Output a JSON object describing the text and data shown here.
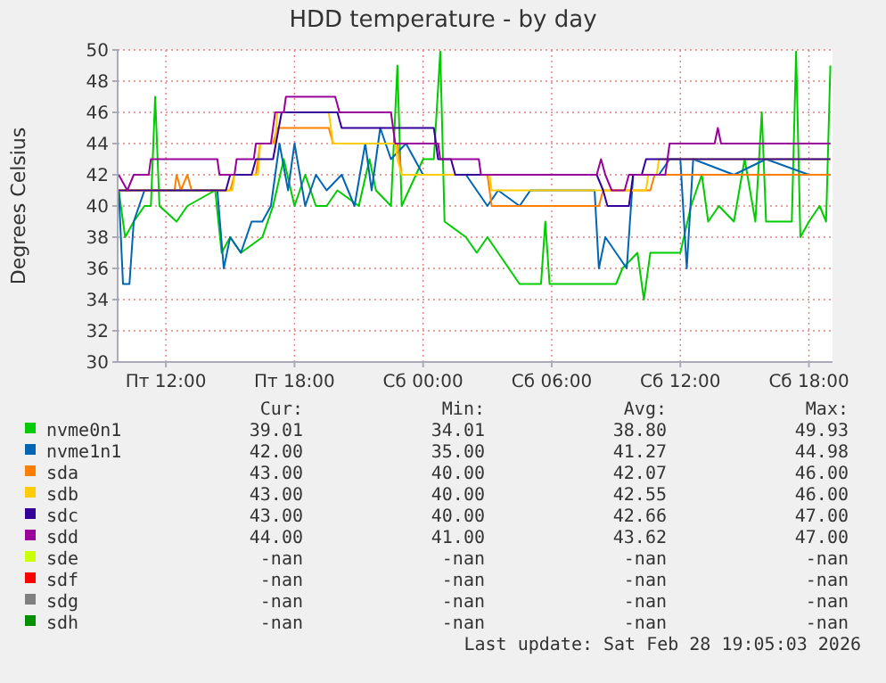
{
  "chart_data": {
    "type": "line",
    "title": "HDD temperature - by day",
    "ylabel": "Degrees Celsius",
    "xlim": [
      "2026-02-27T09:45",
      "2026-02-28T19:06"
    ],
    "xticks": [
      {
        "value": "2026-02-27T12:00",
        "label": "Пт 12:00"
      },
      {
        "value": "2026-02-27T18:00",
        "label": "Пт 18:00"
      },
      {
        "value": "2026-02-28T00:00",
        "label": "Сб 00:00"
      },
      {
        "value": "2026-02-28T06:00",
        "label": "Сб 06:00"
      },
      {
        "value": "2026-02-28T12:00",
        "label": "Сб 12:00"
      },
      {
        "value": "2026-02-28T18:00",
        "label": "Сб 18:00"
      }
    ],
    "ylim": [
      30,
      50
    ],
    "yticks": [
      30,
      32,
      34,
      36,
      38,
      40,
      42,
      44,
      46,
      48,
      50
    ],
    "grid": true,
    "legend": "bottom",
    "marker": "none",
    "line_style": "solid",
    "series": [
      {
        "name": "nvme0n1",
        "color": "#00cc00",
        "x": [
          "2026-02-27T09:48",
          "2026-02-27T10:06",
          "2026-02-27T10:30",
          "2026-02-27T11:00",
          "2026-02-27T11:18",
          "2026-02-27T11:30",
          "2026-02-27T11:42",
          "2026-02-27T12:30",
          "2026-02-27T13:00",
          "2026-02-27T14:18",
          "2026-02-27T14:36",
          "2026-02-27T15:00",
          "2026-02-27T15:30",
          "2026-02-27T16:30",
          "2026-02-27T17:00",
          "2026-02-27T17:30",
          "2026-02-27T18:00",
          "2026-02-27T18:30",
          "2026-02-27T19:00",
          "2026-02-27T19:30",
          "2026-02-27T20:00",
          "2026-02-27T21:00",
          "2026-02-27T21:30",
          "2026-02-27T21:48",
          "2026-02-27T22:30",
          "2026-02-27T22:48",
          "2026-02-27T23:00",
          "2026-02-28T00:00",
          "2026-02-28T00:30",
          "2026-02-28T00:48",
          "2026-02-28T01:00",
          "2026-02-28T02:00",
          "2026-02-28T02:30",
          "2026-02-28T03:00",
          "2026-02-28T04:00",
          "2026-02-28T04:30",
          "2026-02-28T05:30",
          "2026-02-28T05:42",
          "2026-02-28T05:54",
          "2026-02-28T09:00",
          "2026-02-28T09:18",
          "2026-02-28T10:00",
          "2026-02-28T10:18",
          "2026-02-28T10:36",
          "2026-02-28T12:00",
          "2026-02-28T12:30",
          "2026-02-28T13:00",
          "2026-02-28T13:18",
          "2026-02-28T13:48",
          "2026-02-28T14:30",
          "2026-02-28T15:00",
          "2026-02-28T15:30",
          "2026-02-28T15:48",
          "2026-02-28T16:00",
          "2026-02-28T17:12",
          "2026-02-28T17:24",
          "2026-02-28T17:36",
          "2026-02-28T18:00",
          "2026-02-28T18:30",
          "2026-02-28T18:48",
          "2026-02-28T19:00"
        ],
        "values": [
          41,
          38,
          39,
          40,
          40,
          47,
          40,
          39,
          40,
          41,
          37,
          38,
          37,
          38,
          40,
          43,
          40,
          42,
          40,
          40,
          41,
          40,
          43,
          41,
          40,
          49,
          40,
          43,
          43,
          49.9,
          39,
          38,
          37,
          38,
          36,
          35,
          35,
          39,
          35,
          35,
          36,
          37,
          34,
          37,
          37,
          40,
          42,
          39,
          40,
          39,
          43,
          39,
          46,
          39,
          39,
          49.9,
          38,
          39,
          40,
          39,
          49
        ]
      },
      {
        "name": "nvme1n1",
        "color": "#0066b3",
        "x": [
          "2026-02-27T09:48",
          "2026-02-27T10:00",
          "2026-02-27T10:18",
          "2026-02-27T10:30",
          "2026-02-27T11:00",
          "2026-02-27T14:24",
          "2026-02-27T14:42",
          "2026-02-27T15:00",
          "2026-02-27T15:30",
          "2026-02-27T16:00",
          "2026-02-27T16:30",
          "2026-02-27T16:54",
          "2026-02-27T17:18",
          "2026-02-27T17:42",
          "2026-02-27T18:00",
          "2026-02-27T18:30",
          "2026-02-27T19:00",
          "2026-02-27T19:30",
          "2026-02-27T20:12",
          "2026-02-27T20:48",
          "2026-02-27T21:18",
          "2026-02-27T21:36",
          "2026-02-27T22:00",
          "2026-02-27T22:30",
          "2026-02-27T23:12",
          "2026-02-28T00:00",
          "2026-02-28T02:00",
          "2026-02-28T03:00",
          "2026-02-28T03:30",
          "2026-02-28T04:30",
          "2026-02-28T05:00",
          "2026-02-28T08:00",
          "2026-02-28T08:12",
          "2026-02-28T08:30",
          "2026-02-28T09:00",
          "2026-02-28T09:30",
          "2026-02-28T09:48",
          "2026-02-28T11:00",
          "2026-02-28T11:30",
          "2026-02-28T12:00",
          "2026-02-28T12:18",
          "2026-02-28T12:36",
          "2026-02-28T14:30",
          "2026-02-28T16:00",
          "2026-02-28T18:00",
          "2026-02-28T19:00"
        ],
        "values": [
          41,
          35,
          35,
          39,
          41,
          41,
          36,
          38,
          37,
          39,
          39,
          40,
          44,
          41,
          44,
          40,
          42,
          41,
          42,
          40,
          44,
          41,
          45,
          43,
          44,
          42,
          42,
          40,
          41,
          40,
          41,
          41,
          36,
          38,
          37,
          36,
          42,
          42,
          43,
          43,
          36,
          43,
          42,
          43,
          42,
          42
        ]
      },
      {
        "name": "sda",
        "color": "#ff8000",
        "x": [
          "2026-02-27T09:48",
          "2026-02-27T12:24",
          "2026-02-27T12:30",
          "2026-02-27T12:42",
          "2026-02-27T13:00",
          "2026-02-27T13:12",
          "2026-02-27T15:00",
          "2026-02-27T15:12",
          "2026-02-27T16:12",
          "2026-02-27T16:24",
          "2026-02-27T17:00",
          "2026-02-27T17:12",
          "2026-02-27T19:36",
          "2026-02-27T19:48",
          "2026-02-27T22:48",
          "2026-02-27T23:00",
          "2026-02-28T03:00",
          "2026-02-28T03:12",
          "2026-02-28T08:12",
          "2026-02-28T08:24",
          "2026-02-28T10:36",
          "2026-02-28T10:48",
          "2026-02-28T19:00"
        ],
        "values": [
          41,
          41,
          42,
          41,
          42,
          41,
          41,
          42,
          42,
          44,
          44,
          45,
          45,
          44,
          44,
          42,
          42,
          40,
          40,
          41,
          41,
          42,
          42
        ]
      },
      {
        "name": "sdb",
        "color": "#ffcc00",
        "x": [
          "2026-02-27T09:48",
          "2026-02-27T15:06",
          "2026-02-27T15:12",
          "2026-02-27T16:18",
          "2026-02-27T16:24",
          "2026-02-27T17:06",
          "2026-02-27T17:12",
          "2026-02-27T19:36",
          "2026-02-27T19:48",
          "2026-02-27T22:42",
          "2026-02-27T22:48",
          "2026-02-27T23:00",
          "2026-02-28T03:06",
          "2026-02-28T03:12",
          "2026-02-28T08:18",
          "2026-02-28T10:24",
          "2026-02-28T10:30",
          "2026-02-28T10:54",
          "2026-02-28T11:00",
          "2026-02-28T19:00"
        ],
        "values": [
          41,
          41,
          42,
          42,
          44,
          44,
          46,
          46,
          44,
          44,
          43,
          42,
          42,
          41,
          41,
          41,
          42,
          42,
          43,
          43
        ]
      },
      {
        "name": "sdc",
        "color": "#330099",
        "x": [
          "2026-02-27T09:48",
          "2026-02-27T14:48",
          "2026-02-27T15:00",
          "2026-02-27T16:00",
          "2026-02-27T16:12",
          "2026-02-27T17:00",
          "2026-02-27T17:24",
          "2026-02-27T20:00",
          "2026-02-27T20:12",
          "2026-02-28T00:30",
          "2026-02-28T00:42",
          "2026-02-28T01:18",
          "2026-02-28T01:30",
          "2026-02-28T08:06",
          "2026-02-28T08:24",
          "2026-02-28T08:36",
          "2026-02-28T09:36",
          "2026-02-28T09:48",
          "2026-02-28T10:12",
          "2026-02-28T10:24",
          "2026-02-28T19:00"
        ],
        "values": [
          41,
          41,
          42,
          42,
          43,
          43,
          46,
          46,
          45,
          45,
          43,
          43,
          42,
          42,
          41,
          40,
          40,
          42,
          42,
          43,
          43
        ]
      },
      {
        "name": "sdd",
        "color": "#990099",
        "x": [
          "2026-02-27T09:48",
          "2026-02-27T10:12",
          "2026-02-27T10:30",
          "2026-02-27T11:12",
          "2026-02-27T11:18",
          "2026-02-27T14:24",
          "2026-02-27T14:30",
          "2026-02-27T15:12",
          "2026-02-27T15:18",
          "2026-02-27T16:06",
          "2026-02-27T16:12",
          "2026-02-27T16:54",
          "2026-02-27T17:06",
          "2026-02-27T17:30",
          "2026-02-27T17:36",
          "2026-02-27T19:54",
          "2026-02-27T20:06",
          "2026-02-27T22:30",
          "2026-02-27T22:42",
          "2026-02-28T00:42",
          "2026-02-28T00:48",
          "2026-02-28T02:36",
          "2026-02-28T02:42",
          "2026-02-28T08:06",
          "2026-02-28T08:18",
          "2026-02-28T08:30",
          "2026-02-28T08:48",
          "2026-02-28T09:24",
          "2026-02-28T09:36",
          "2026-02-28T11:18",
          "2026-02-28T11:30",
          "2026-02-28T13:36",
          "2026-02-28T13:45",
          "2026-02-28T13:54",
          "2026-02-28T19:00"
        ],
        "values": [
          42,
          41,
          42,
          42,
          43,
          43,
          42,
          42,
          43,
          43,
          44,
          44,
          46,
          46,
          47,
          47,
          46,
          46,
          44,
          44,
          43,
          43,
          42,
          42,
          43,
          42,
          41,
          41,
          42,
          42,
          44,
          44,
          45,
          44,
          44
        ]
      },
      {
        "name": "sde",
        "color": "#ccff00"
      },
      {
        "name": "sdf",
        "color": "#ff0000"
      },
      {
        "name": "sdg",
        "color": "#808080"
      },
      {
        "name": "sdh",
        "color": "#008f00"
      }
    ],
    "annotations": [
      "Cur:",
      "Min:",
      "Avg:",
      "Max:",
      "39.01",
      "34.01",
      "38.80",
      "49.93",
      "42.00",
      "35.00",
      "41.27",
      "44.98",
      "43.00",
      "40.00",
      "42.07",
      "46.00",
      "43.00",
      "40.00",
      "42.55",
      "46.00",
      "43.00",
      "40.00",
      "42.66",
      "47.00",
      "44.00",
      "41.00",
      "43.62",
      "47.00",
      "-nan",
      "-nan",
      "-nan",
      "-nan",
      "-nan",
      "-nan",
      "-nan",
      "-nan",
      "-nan",
      "-nan",
      "-nan",
      "-nan",
      "-nan",
      "-nan",
      "-nan",
      "-nan",
      "Last update: Sat Feb 28 19:05:03 2026"
    ]
  }
}
